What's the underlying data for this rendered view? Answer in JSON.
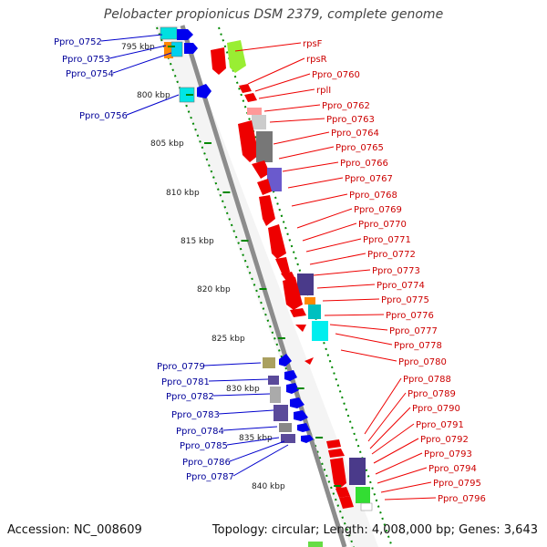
{
  "title": "Pelobacter propionicus DSM 2379, complete genome",
  "accession": "Accession: NC_008609",
  "topology": "Topology: circular; Length: 4,008,000 bp; Genes: 3,643",
  "ruler_labels": [
    "795 kbp",
    "800 kbp",
    "805 kbp",
    "810 kbp",
    "815 kbp",
    "820 kbp",
    "825 kbp",
    "830 kbp",
    "835 kbp",
    "840 kbp"
  ],
  "left_labels": [
    "Ppro_0752",
    "Ppro_0753",
    "Ppro_0754",
    "Ppro_0756",
    "Ppro_0779",
    "Ppro_0781",
    "Ppro_0782",
    "Ppro_0783",
    "Ppro_0784",
    "Ppro_0785",
    "Ppro_0786",
    "Ppro_0787"
  ],
  "right_labels": [
    "rpsF",
    "rpsR",
    "Ppro_0760",
    "rplI",
    "Ppro_0762",
    "Ppro_0763",
    "Ppro_0764",
    "Ppro_0765",
    "Ppro_0766",
    "Ppro_0767",
    "Ppro_0768",
    "Ppro_0769",
    "Ppro_0770",
    "Ppro_0771",
    "Ppro_0772",
    "Ppro_0773",
    "Ppro_0774",
    "Ppro_0775",
    "Ppro_0776",
    "Ppro_0777",
    "Ppro_0778",
    "Ppro_0780",
    "Ppro_0788",
    "Ppro_0789",
    "Ppro_0790",
    "Ppro_0791",
    "Ppro_0792",
    "Ppro_0793",
    "Ppro_0794",
    "Ppro_0795",
    "Ppro_0796"
  ],
  "colors": {
    "forward_genes": "#ff0000",
    "reverse_genes": "#0000ff",
    "backbone": "#888888",
    "ruler_ticks": "#008800",
    "left_label_text": "#000099",
    "right_label_text": "#cc0000"
  }
}
